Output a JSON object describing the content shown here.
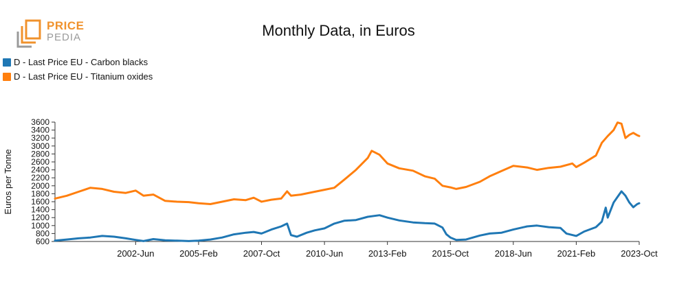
{
  "logo": {
    "line1": "PRICE",
    "line2": "PEDIA"
  },
  "colors": {
    "carbon": "#1f77b4",
    "titanium": "#ff7f0e",
    "logo_orange": "#f0922c",
    "logo_gray": "#9a9a9a"
  },
  "chart_data": {
    "type": "line",
    "title": "Monthly Data, in Euros",
    "xlabel": "",
    "ylabel": "Euros per Tonne",
    "ylim": [
      600,
      3600
    ],
    "yticks": [
      600,
      800,
      1000,
      1200,
      1400,
      1600,
      1800,
      2000,
      2200,
      2400,
      2600,
      2800,
      3000,
      3200,
      3400,
      3600
    ],
    "xlim": [
      "1999-01",
      "2023-10"
    ],
    "xticks": [
      {
        "date": "2002-06",
        "label": "2002-Jun"
      },
      {
        "date": "2005-02",
        "label": "2005-Feb"
      },
      {
        "date": "2007-10",
        "label": "2007-Oct"
      },
      {
        "date": "2010-06",
        "label": "2010-Jun"
      },
      {
        "date": "2013-02",
        "label": "2013-Feb"
      },
      {
        "date": "2015-10",
        "label": "2015-Oct"
      },
      {
        "date": "2018-06",
        "label": "2018-Jun"
      },
      {
        "date": "2021-02",
        "label": "2021-Feb"
      },
      {
        "date": "2023-10",
        "label": "2023-Oct"
      }
    ],
    "grid": false,
    "legend": "top-left",
    "series": [
      {
        "name": "D - Last Price EU - Carbon blacks",
        "color": "#1f77b4",
        "points": [
          [
            "1999-01",
            620
          ],
          [
            "1999-07",
            650
          ],
          [
            "2000-01",
            680
          ],
          [
            "2000-07",
            700
          ],
          [
            "2001-01",
            740
          ],
          [
            "2001-07",
            720
          ],
          [
            "2002-01",
            680
          ],
          [
            "2002-06",
            640
          ],
          [
            "2002-10",
            610
          ],
          [
            "2003-03",
            660
          ],
          [
            "2003-09",
            630
          ],
          [
            "2004-03",
            620
          ],
          [
            "2004-09",
            610
          ],
          [
            "2005-02",
            620
          ],
          [
            "2005-08",
            650
          ],
          [
            "2006-02",
            700
          ],
          [
            "2006-08",
            780
          ],
          [
            "2007-02",
            820
          ],
          [
            "2007-06",
            840
          ],
          [
            "2007-10",
            800
          ],
          [
            "2008-03",
            900
          ],
          [
            "2008-08",
            980
          ],
          [
            "2008-11",
            1050
          ],
          [
            "2009-01",
            760
          ],
          [
            "2009-04",
            720
          ],
          [
            "2009-09",
            820
          ],
          [
            "2010-01",
            880
          ],
          [
            "2010-06",
            930
          ],
          [
            "2010-11",
            1050
          ],
          [
            "2011-04",
            1120
          ],
          [
            "2011-10",
            1140
          ],
          [
            "2012-04",
            1220
          ],
          [
            "2012-10",
            1260
          ],
          [
            "2013-02",
            1200
          ],
          [
            "2013-08",
            1130
          ],
          [
            "2014-03",
            1080
          ],
          [
            "2014-09",
            1060
          ],
          [
            "2015-02",
            1050
          ],
          [
            "2015-06",
            950
          ],
          [
            "2015-08",
            780
          ],
          [
            "2015-10",
            700
          ],
          [
            "2016-01",
            640
          ],
          [
            "2016-06",
            650
          ],
          [
            "2017-01",
            750
          ],
          [
            "2017-06",
            800
          ],
          [
            "2017-12",
            820
          ],
          [
            "2018-06",
            900
          ],
          [
            "2019-01",
            980
          ],
          [
            "2019-06",
            1000
          ],
          [
            "2019-12",
            960
          ],
          [
            "2020-06",
            940
          ],
          [
            "2020-09",
            800
          ],
          [
            "2021-02",
            740
          ],
          [
            "2021-06",
            850
          ],
          [
            "2021-12",
            960
          ],
          [
            "2022-03",
            1100
          ],
          [
            "2022-05",
            1450
          ],
          [
            "2022-06",
            1200
          ],
          [
            "2022-09",
            1580
          ],
          [
            "2022-11",
            1720
          ],
          [
            "2023-01",
            1860
          ],
          [
            "2023-03",
            1750
          ],
          [
            "2023-05",
            1580
          ],
          [
            "2023-07",
            1460
          ],
          [
            "2023-09",
            1540
          ],
          [
            "2023-10",
            1560
          ]
        ]
      },
      {
        "name": "D - Last Price EU - Titanium oxides",
        "color": "#ff7f0e",
        "points": [
          [
            "1999-01",
            1680
          ],
          [
            "1999-07",
            1750
          ],
          [
            "2000-01",
            1850
          ],
          [
            "2000-07",
            1950
          ],
          [
            "2001-01",
            1920
          ],
          [
            "2001-07",
            1850
          ],
          [
            "2002-01",
            1820
          ],
          [
            "2002-06",
            1880
          ],
          [
            "2002-10",
            1750
          ],
          [
            "2003-03",
            1780
          ],
          [
            "2003-09",
            1620
          ],
          [
            "2004-03",
            1600
          ],
          [
            "2004-09",
            1590
          ],
          [
            "2005-02",
            1560
          ],
          [
            "2005-08",
            1540
          ],
          [
            "2006-02",
            1600
          ],
          [
            "2006-08",
            1660
          ],
          [
            "2007-02",
            1640
          ],
          [
            "2007-06",
            1700
          ],
          [
            "2007-10",
            1600
          ],
          [
            "2008-03",
            1650
          ],
          [
            "2008-08",
            1680
          ],
          [
            "2008-11",
            1860
          ],
          [
            "2009-01",
            1750
          ],
          [
            "2009-06",
            1780
          ],
          [
            "2010-01",
            1850
          ],
          [
            "2010-06",
            1900
          ],
          [
            "2010-11",
            1950
          ],
          [
            "2011-04",
            2150
          ],
          [
            "2011-10",
            2400
          ],
          [
            "2012-04",
            2700
          ],
          [
            "2012-06",
            2880
          ],
          [
            "2012-10",
            2780
          ],
          [
            "2013-02",
            2560
          ],
          [
            "2013-08",
            2440
          ],
          [
            "2014-03",
            2380
          ],
          [
            "2014-09",
            2240
          ],
          [
            "2015-02",
            2180
          ],
          [
            "2015-06",
            2000
          ],
          [
            "2015-10",
            1960
          ],
          [
            "2016-01",
            1920
          ],
          [
            "2016-06",
            1970
          ],
          [
            "2017-01",
            2100
          ],
          [
            "2017-06",
            2240
          ],
          [
            "2017-12",
            2370
          ],
          [
            "2018-06",
            2500
          ],
          [
            "2019-01",
            2460
          ],
          [
            "2019-06",
            2400
          ],
          [
            "2019-12",
            2450
          ],
          [
            "2020-06",
            2480
          ],
          [
            "2020-12",
            2560
          ],
          [
            "2021-02",
            2470
          ],
          [
            "2021-06",
            2580
          ],
          [
            "2021-12",
            2760
          ],
          [
            "2022-03",
            3080
          ],
          [
            "2022-06",
            3250
          ],
          [
            "2022-09",
            3400
          ],
          [
            "2022-11",
            3590
          ],
          [
            "2023-01",
            3560
          ],
          [
            "2023-03",
            3200
          ],
          [
            "2023-05",
            3280
          ],
          [
            "2023-07",
            3330
          ],
          [
            "2023-09",
            3270
          ],
          [
            "2023-10",
            3250
          ]
        ]
      }
    ]
  }
}
